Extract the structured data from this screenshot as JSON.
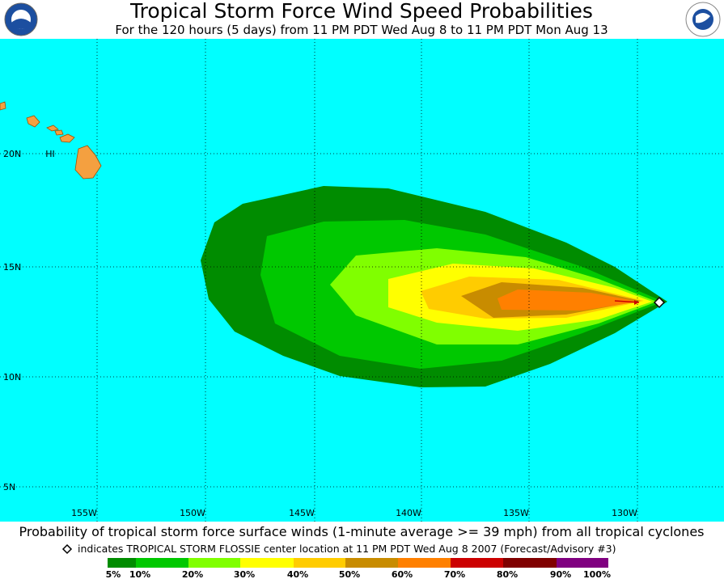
{
  "header": {
    "title": "Tropical Storm Force Wind Speed Probabilities",
    "subtitle": "For the 120 hours (5 days) from 11 PM PDT Wed Aug 8 to 11 PM PDT Mon Aug 13"
  },
  "map": {
    "lat_labels": [
      "20N",
      "15N",
      "10N",
      "5N"
    ],
    "lon_labels": [
      "155W",
      "150W",
      "145W",
      "140W",
      "135W",
      "130W"
    ],
    "region_label": "HI"
  },
  "footer": {
    "caption": "Probability of tropical storm force surface winds (1-minute average >= 39 mph) from all tropical cyclones",
    "note": "indicates TROPICAL STORM FLOSSIE center location at 11 PM PDT Wed Aug 8 2007 (Forecast/Advisory #3)"
  },
  "legend": {
    "labels": [
      "5%",
      "10%",
      "20%",
      "30%",
      "40%",
      "50%",
      "60%",
      "70%",
      "80%",
      "90%",
      "100%"
    ],
    "colors": [
      "#008c00",
      "#00c800",
      "#80ff00",
      "#ffff00",
      "#ffcc00",
      "#c88c00",
      "#ff8000",
      "#cc0000",
      "#800000",
      "#800080"
    ]
  }
}
